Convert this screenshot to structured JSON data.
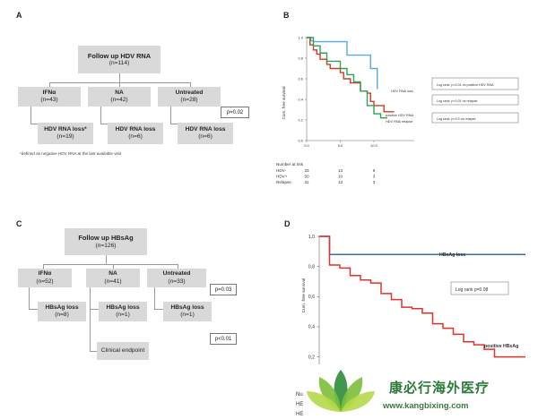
{
  "panel_a": {
    "letter": "A",
    "root": {
      "title": "Follow up HDV RNA",
      "n": "(n=114)"
    },
    "arms": [
      {
        "title": "IFNα",
        "n": "(n=43)"
      },
      {
        "title": "NA",
        "n": "(n=42)"
      },
      {
        "title": "Untreated",
        "n": "(n=28)"
      }
    ],
    "outcomes": [
      {
        "title": "HDV RNA loss*",
        "n": "(n=19)"
      },
      {
        "title": "HDV RNA loss",
        "n": "(n=6)"
      },
      {
        "title": "HDV RNA loss",
        "n": "(n=6)"
      }
    ],
    "pvalue": "p=0.02",
    "footnote": "*defined as negative HDV RNA at the last available visit"
  },
  "panel_c": {
    "letter": "C",
    "root": {
      "title": "Follow up HBsAg",
      "n": "(n=126)"
    },
    "arms": [
      {
        "title": "IFNα",
        "n": "(n=52)"
      },
      {
        "title": "NA",
        "n": "(n=41)"
      },
      {
        "title": "Untreated",
        "n": "(n=33)"
      }
    ],
    "outcomes": [
      {
        "title": "HBsAg loss",
        "n": "(n=8)"
      },
      {
        "title": "HBsAg loss",
        "n": "(n=1)"
      },
      {
        "title": "HBsAg loss",
        "n": "(n=1)"
      }
    ],
    "extra": "Clinical endpoint",
    "pvalues": [
      "p=0.03",
      "p<0.01"
    ]
  },
  "chart_data": [
    {
      "panel": "B",
      "type": "line",
      "step": true,
      "ylabel": "Cum. free survival",
      "xlim": [
        0,
        16
      ],
      "ylim": [
        0,
        1.0
      ],
      "xticks": [
        "0.0",
        "5.0",
        "10.0"
      ],
      "yticks": [
        "0.0",
        "0.2",
        "0.4",
        "0.6",
        "0.8",
        "1.0"
      ],
      "series": [
        {
          "name": "HDV RNA loss",
          "color": "#5aaae0",
          "x": [
            0,
            0.6,
            1,
            5,
            6,
            8,
            9.5,
            10.5
          ],
          "y": [
            1.0,
            0.97,
            0.96,
            0.96,
            0.83,
            0.83,
            0.7,
            0.5
          ]
        },
        {
          "name": "positive HDV RNA",
          "color": "#d23a2a",
          "x": [
            0,
            0.5,
            1,
            1.5,
            2,
            3,
            3.5,
            5,
            5.5,
            6.5,
            8,
            9,
            9.5,
            10,
            11.5,
            13
          ],
          "y": [
            1.0,
            0.93,
            0.88,
            0.84,
            0.79,
            0.74,
            0.7,
            0.66,
            0.6,
            0.56,
            0.48,
            0.46,
            0.38,
            0.34,
            0.28,
            0.28
          ]
        },
        {
          "name": "HDV RNA relapse",
          "color": "#2fa353",
          "x": [
            0,
            1,
            2,
            3,
            4,
            5,
            6,
            7,
            8,
            9,
            10,
            11,
            12
          ],
          "y": [
            1.0,
            0.92,
            0.85,
            0.77,
            0.77,
            0.7,
            0.64,
            0.57,
            0.48,
            0.34,
            0.26,
            0.22,
            0.22
          ]
        }
      ],
      "annotations": [
        "Log rank: p<0.01 vs positive HDV RNA",
        "Log rank: p<0.01 vs relapse",
        "Log rank: p=0.5 vs relapse"
      ],
      "risk_table": {
        "title": "Number at risk",
        "rows": [
          {
            "label": "HDV-",
            "values": [
              "33",
              "13",
              "6"
            ]
          },
          {
            "label": "HDV+",
            "values": [
              "50",
              "10",
              "3"
            ]
          },
          {
            "label": "Relapse",
            "values": [
              "31",
              "13",
              "3"
            ]
          }
        ]
      }
    },
    {
      "panel": "D",
      "type": "line",
      "step": true,
      "ylabel": "Cum. free survival",
      "xlim": [
        0,
        20
      ],
      "ylim": [
        0.15,
        1.0
      ],
      "yticks": [
        "0,2",
        "0,4",
        "0,6",
        "0,8",
        "1,0"
      ],
      "series": [
        {
          "name": "HBsAg loss",
          "color": "#2f6fb2",
          "x": [
            0,
            1,
            2,
            20
          ],
          "y": [
            1.0,
            0.88,
            0.88,
            0.88
          ]
        },
        {
          "name": "positive HBsAg",
          "color": "#e2332a",
          "x": [
            0,
            1,
            2,
            3,
            4,
            5,
            6,
            7,
            8,
            9,
            10,
            11,
            12,
            13,
            14,
            15,
            16,
            17,
            20
          ],
          "y": [
            1.0,
            0.81,
            0.79,
            0.74,
            0.71,
            0.69,
            0.62,
            0.58,
            0.53,
            0.52,
            0.49,
            0.42,
            0.39,
            0.35,
            0.3,
            0.28,
            0.25,
            0.2,
            0.2
          ]
        }
      ],
      "annotation": "Log rank p=0.08",
      "risk_table_stub": [
        "Nu",
        "HE",
        "HE"
      ]
    }
  ],
  "watermark": {
    "name": "康必行海外医疗",
    "url": "www.kangbixing.com",
    "colors": {
      "leaf_light": "#9acd32",
      "leaf_dark": "#2e8b3a",
      "text": "#2c7a3a"
    }
  }
}
